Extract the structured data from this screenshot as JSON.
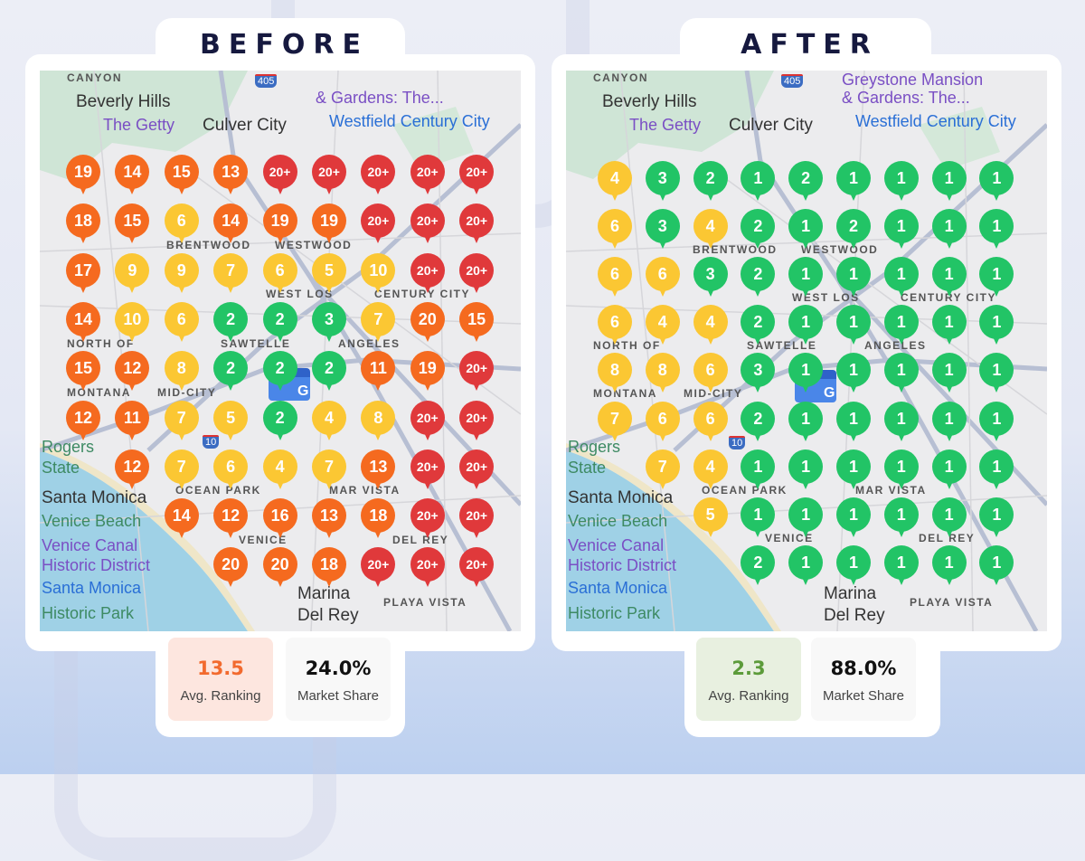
{
  "colors": {
    "red": "#e0393b",
    "orange": "#f56a1f",
    "yellow": "#fbc733",
    "green": "#22c466",
    "title": "#16193f",
    "before_avg_bg": "#fde6df",
    "before_avg_text": "#f26a2e",
    "after_avg_bg": "#e8f0e0",
    "after_avg_text": "#5c9b3a"
  },
  "map_labels": [
    "CANYON",
    "& Gardens: The...",
    "The Getty",
    "BRENTWOOD",
    "WESTWOOD",
    "WEST LOS",
    "ANGELES",
    "NORTH OF",
    "MONTANA",
    "SAWTELLE",
    "MID-CITY",
    "Santa Monica",
    "OCEAN PARK",
    "MAR VISTA",
    "Venice Beach",
    "VENICE",
    "Venice Canal",
    "Historic District",
    "DEL REY",
    "Marina",
    "Del Rey",
    "PLAYA VISTA",
    "Culver City",
    "Beverly Hills",
    "Westfield Century City",
    "Rogers",
    "State",
    "Historic Park",
    "CENTURY CITY",
    "Santa Monica"
  ],
  "highway_labels": [
    "405",
    "10",
    "405",
    "10"
  ],
  "gbp_letter": "G",
  "before": {
    "title": "BEFORE",
    "grid": [
      [
        "19",
        "14",
        "15",
        "13",
        "20+",
        "20+",
        "20+",
        "20+",
        "20+"
      ],
      [
        "18",
        "15",
        "6",
        "14",
        "19",
        "19",
        "20+",
        "20+",
        "20+"
      ],
      [
        "17",
        "9",
        "9",
        "7",
        "6",
        "5",
        "10",
        "20+",
        "20+"
      ],
      [
        "14",
        "10",
        "6",
        "2",
        "2",
        "3",
        "7",
        "20",
        "15"
      ],
      [
        "15",
        "12",
        "8",
        "2",
        "2",
        "2",
        "11",
        "19",
        "20+"
      ],
      [
        "12",
        "11",
        "7",
        "5",
        "2",
        "4",
        "8",
        "20+",
        "20+"
      ],
      [
        null,
        "12",
        "7",
        "6",
        "4",
        "7",
        "13",
        "20+",
        "20+"
      ],
      [
        null,
        null,
        "14",
        "12",
        "16",
        "13",
        "18",
        "20+",
        "20+"
      ],
      [
        null,
        null,
        null,
        "20",
        "20",
        "18",
        "20+",
        "20+",
        "20+"
      ]
    ],
    "avg_ranking": "13.5",
    "avg_ranking_label": "Avg. Ranking",
    "market_share": "24.0%",
    "market_share_label": "Market Share"
  },
  "after": {
    "title": "AFTER",
    "top_label": "Greystone Mansion",
    "grid": [
      [
        "4",
        "3",
        "2",
        "1",
        "2",
        "1",
        "1",
        "1",
        "1"
      ],
      [
        "6",
        "3",
        "4",
        "2",
        "1",
        "2",
        "1",
        "1",
        "1"
      ],
      [
        "6",
        "6",
        "3",
        "2",
        "1",
        "1",
        "1",
        "1",
        "1"
      ],
      [
        "6",
        "4",
        "4",
        "2",
        "1",
        "1",
        "1",
        "1",
        "1"
      ],
      [
        "8",
        "8",
        "6",
        "3",
        "1",
        "1",
        "1",
        "1",
        "1"
      ],
      [
        "7",
        "6",
        "6",
        "2",
        "1",
        "1",
        "1",
        "1",
        "1"
      ],
      [
        null,
        "7",
        "4",
        "1",
        "1",
        "1",
        "1",
        "1",
        "1"
      ],
      [
        null,
        null,
        "5",
        "1",
        "1",
        "1",
        "1",
        "1",
        "1"
      ],
      [
        null,
        null,
        null,
        "2",
        "1",
        "1",
        "1",
        "1",
        "1"
      ]
    ],
    "avg_ranking": "2.3",
    "avg_ranking_label": "Avg. Ranking",
    "market_share": "88.0%",
    "market_share_label": "Market Share"
  }
}
